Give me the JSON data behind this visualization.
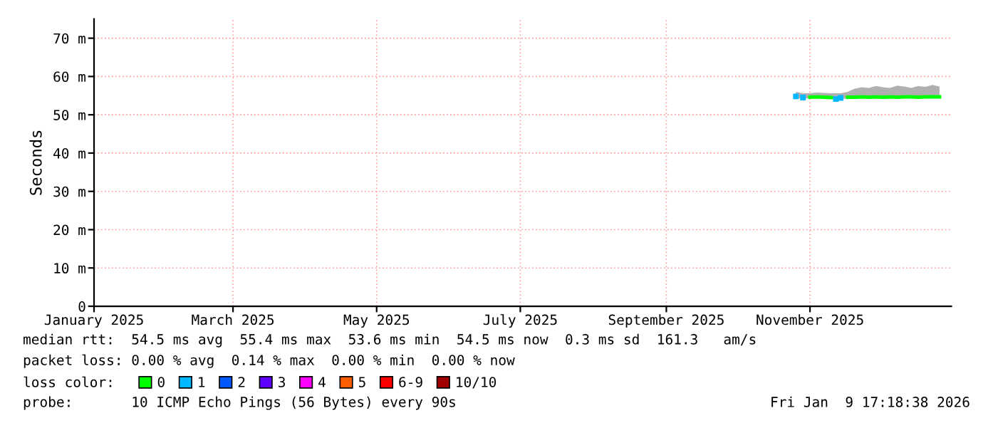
{
  "chart_data": {
    "type": "line",
    "ylabel": "Seconds",
    "x": [
      "2025-10-26",
      "2025-10-29",
      "2025-11-01",
      "2025-11-04",
      "2025-11-07",
      "2025-11-10",
      "2025-11-12",
      "2025-11-14",
      "2025-11-17",
      "2025-11-20",
      "2025-11-23",
      "2025-11-26",
      "2025-11-29",
      "2025-12-02",
      "2025-12-05",
      "2025-12-08",
      "2025-12-11",
      "2025-12-14",
      "2025-12-17",
      "2025-12-20",
      "2025-12-23",
      "2025-12-26"
    ],
    "series": [
      {
        "name": "0",
        "color": "#00ff00",
        "values": [
          null,
          null,
          54.6,
          54.7,
          54.6,
          54.5,
          null,
          null,
          54.6,
          54.6,
          54.7,
          54.6,
          54.7,
          54.6,
          54.7,
          54.6,
          54.7,
          54.7,
          54.6,
          54.7,
          54.7,
          54.7
        ],
        "lower": [
          54.3,
          54.2,
          54.3,
          54.3,
          54.3,
          54.2,
          53.8,
          54.1,
          54.3,
          54.3,
          54.3,
          54.3,
          54.3,
          54.3,
          54.3,
          54.3,
          54.3,
          54.3,
          54.3,
          54.3,
          54.3,
          54.3
        ],
        "upper": [
          56.0,
          55.6,
          55.6,
          55.8,
          55.7,
          55.6,
          55.6,
          55.6,
          56.0,
          56.8,
          57.2,
          57.0,
          57.5,
          57.2,
          57.0,
          57.6,
          57.4,
          57.0,
          57.5,
          57.3,
          57.8,
          57.4
        ]
      },
      {
        "name": "1",
        "type": "scatter",
        "color": "#00b8ff",
        "values": [
          54.8,
          54.5,
          null,
          null,
          null,
          null,
          54.1,
          54.4,
          null,
          null,
          null,
          null,
          null,
          null,
          null,
          null,
          null,
          null,
          null,
          null,
          null,
          null
        ]
      },
      {
        "name": "2",
        "color": "#0059ff",
        "values": [
          null,
          null,
          null,
          null,
          null,
          null,
          null,
          null,
          null,
          null,
          null,
          null,
          null,
          null,
          null,
          null,
          null,
          null,
          null,
          null,
          null,
          null
        ]
      },
      {
        "name": "3",
        "color": "#5e00ff",
        "values": [
          null,
          null,
          null,
          null,
          null,
          null,
          null,
          null,
          null,
          null,
          null,
          null,
          null,
          null,
          null,
          null,
          null,
          null,
          null,
          null,
          null,
          null
        ]
      },
      {
        "name": "4",
        "color": "#ff00ff",
        "values": [
          null,
          null,
          null,
          null,
          null,
          null,
          null,
          null,
          null,
          null,
          null,
          null,
          null,
          null,
          null,
          null,
          null,
          null,
          null,
          null,
          null,
          null
        ]
      },
      {
        "name": "5",
        "color": "#ff5e00",
        "values": [
          null,
          null,
          null,
          null,
          null,
          null,
          null,
          null,
          null,
          null,
          null,
          null,
          null,
          null,
          null,
          null,
          null,
          null,
          null,
          null,
          null,
          null
        ]
      },
      {
        "name": "6-9",
        "color": "#ff0000",
        "values": [
          null,
          null,
          null,
          null,
          null,
          null,
          null,
          null,
          null,
          null,
          null,
          null,
          null,
          null,
          null,
          null,
          null,
          null,
          null,
          null,
          null,
          null
        ]
      },
      {
        "name": "10/10",
        "color": "#a10000",
        "values": [
          null,
          null,
          null,
          null,
          null,
          null,
          null,
          null,
          null,
          null,
          null,
          null,
          null,
          null,
          null,
          null,
          null,
          null,
          null,
          null,
          null,
          null
        ]
      }
    ],
    "xlim": [
      "2025-01-01",
      "2025-12-31"
    ],
    "xticks": [
      {
        "value": "2025-01-01",
        "label": "January 2025"
      },
      {
        "value": "2025-03-01",
        "label": "March 2025"
      },
      {
        "value": "2025-05-01",
        "label": "May 2025"
      },
      {
        "value": "2025-07-01",
        "label": "July 2025"
      },
      {
        "value": "2025-09-01",
        "label": "September 2025"
      },
      {
        "value": "2025-11-01",
        "label": "November 2025"
      }
    ],
    "ylim": [
      0,
      75
    ],
    "yticks": [
      0,
      {
        "value": 10,
        "label": "10 m"
      },
      {
        "value": 20,
        "label": "20 m"
      },
      {
        "value": 30,
        "label": "30 m"
      },
      {
        "value": 40,
        "label": "40 m"
      },
      {
        "value": 50,
        "label": "50 m"
      },
      {
        "value": 60,
        "label": "60 m"
      },
      {
        "value": 70,
        "label": "70 m"
      }
    ],
    "grid": true,
    "legend": "bottom",
    "legend_title": "loss color:",
    "annotations": [
      "median rtt:  54.5 ms avg  55.4 ms max  53.6 ms min  54.5 ms now  0.3 ms sd  161.3   am/s",
      "packet loss: 0.00 % avg  0.14 % max  0.00 % min  0.00 % now",
      "probe:       10 ICMP Echo Pings (56 Bytes) every 90s",
      "Fri Jan  9 17:18:38 2026"
    ]
  }
}
